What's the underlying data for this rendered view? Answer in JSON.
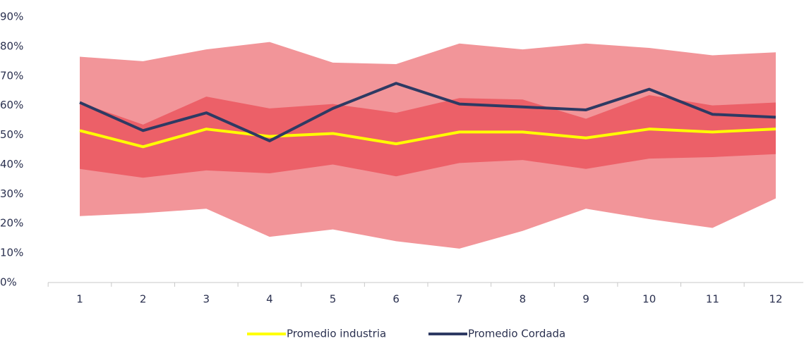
{
  "chart_data": {
    "type": "line",
    "categories": [
      "1",
      "2",
      "3",
      "4",
      "5",
      "6",
      "7",
      "8",
      "9",
      "10",
      "11",
      "12"
    ],
    "bands": [
      {
        "color": "#f29599",
        "upper": [
          76.5,
          75,
          79,
          81.5,
          74.5,
          74,
          81,
          79,
          81,
          79.5,
          77,
          78
        ],
        "lower": [
          22.5,
          23.5,
          25,
          15.5,
          18,
          14,
          11.5,
          17.5,
          25,
          21.5,
          18.5,
          28.5
        ]
      },
      {
        "color": "#ec6068",
        "upper": [
          61,
          53.5,
          63,
          59,
          60.5,
          57.5,
          62.5,
          62,
          55.5,
          63.5,
          60,
          61
        ],
        "lower": [
          38.5,
          35.5,
          38,
          37,
          40,
          36,
          40.5,
          41.5,
          38.5,
          42,
          42.5,
          43.5
        ]
      }
    ],
    "series": [
      {
        "name": "Promedio industria",
        "color": "#ffff00",
        "values": [
          51.5,
          46,
          52,
          49.5,
          50.5,
          47,
          51,
          51,
          49,
          52,
          51,
          52
        ]
      },
      {
        "name": "Promedio Cordada",
        "color": "#2e3a63",
        "values": [
          61,
          51.5,
          57.5,
          48,
          59,
          67.5,
          60.5,
          59.5,
          58.5,
          65.5,
          57,
          56
        ]
      }
    ],
    "ylim": [
      0,
      90
    ],
    "yticks": [
      {
        "value": 0,
        "label": "0%"
      },
      {
        "value": 10,
        "label": "10%"
      },
      {
        "value": 20,
        "label": "20%"
      },
      {
        "value": 30,
        "label": "30%"
      },
      {
        "value": 40,
        "label": "40%"
      },
      {
        "value": 50,
        "label": "50%"
      },
      {
        "value": 60,
        "label": "60%"
      },
      {
        "value": 70,
        "label": "70%"
      },
      {
        "value": 80,
        "label": "80%"
      },
      {
        "value": 90,
        "label": "90%"
      }
    ],
    "legend": "bottom"
  }
}
